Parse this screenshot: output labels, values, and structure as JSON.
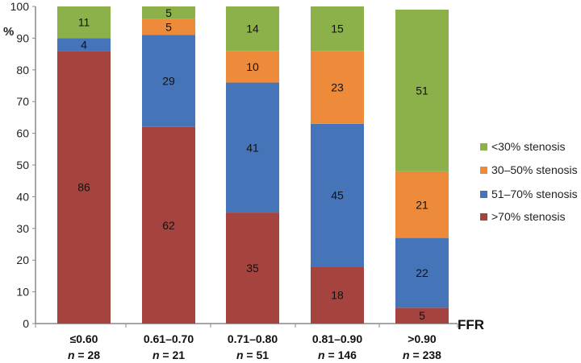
{
  "chart_data": {
    "type": "bar",
    "stacked": true,
    "ylabel": "%",
    "xlabel": "FFR",
    "ylim": [
      0,
      100
    ],
    "yticks": [
      0,
      10,
      20,
      30,
      40,
      50,
      60,
      70,
      80,
      90,
      100
    ],
    "categories": [
      "≤0.60",
      "0.61–0.70",
      "0.71–0.80",
      "0.81–0.90",
      ">0.90"
    ],
    "category_n": [
      "n = 28",
      "n = 21",
      "n = 51",
      "n = 146",
      "n = 238"
    ],
    "series": [
      {
        "name": ">70% stenosis",
        "color": "#a5443f",
        "values": [
          86,
          62,
          35,
          18,
          5
        ]
      },
      {
        "name": "51–70% stenosis",
        "color": "#4674b8",
        "values": [
          4,
          29,
          41,
          45,
          22
        ]
      },
      {
        "name": "30–50% stenosis",
        "color": "#ee8b3a",
        "values": [
          0,
          5,
          10,
          23,
          21
        ]
      },
      {
        "name": "<30% stenosis",
        "color": "#8db14a",
        "values": [
          11,
          5,
          14,
          15,
          51
        ]
      }
    ],
    "legend_order": [
      "<30% stenosis",
      "30–50% stenosis",
      "51–70% stenosis",
      ">70% stenosis"
    ],
    "legend_position": "right",
    "grid": false
  }
}
